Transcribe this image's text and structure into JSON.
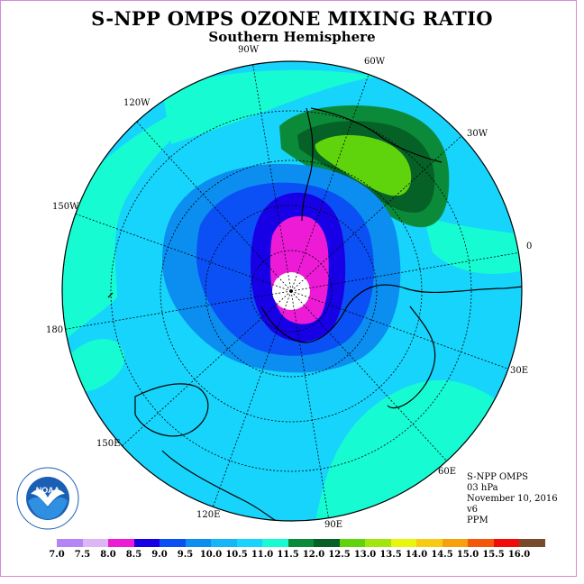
{
  "header": {
    "title": "S-NPP OMPS OZONE MIXING RATIO",
    "subtitle": "Southern Hemisphere"
  },
  "map": {
    "projection": "south-polar-stereographic",
    "longitude_labels": [
      "90W",
      "60W",
      "30W",
      "0",
      "30E",
      "60E",
      "90E",
      "120E",
      "150E",
      "180",
      "150W",
      "120W"
    ]
  },
  "info": {
    "instrument": "S-NPP OMPS",
    "level": "03 hPa",
    "date": "November 10, 2016",
    "version": "v6",
    "units": "PPM"
  },
  "colorbar": {
    "ticks": [
      "7.0",
      "7.5",
      "8.0",
      "8.5",
      "9.0",
      "9.5",
      "10.0",
      "10.5",
      "11.0",
      "11.5",
      "12.0",
      "12.5",
      "13.0",
      "13.5",
      "14.0",
      "14.5",
      "15.0",
      "15.5",
      "16.0"
    ],
    "colors": [
      "#b585f5",
      "#dcb6f5",
      "#ee1bd6",
      "#1800e6",
      "#0b50f5",
      "#0b8ef0",
      "#15b6f7",
      "#16d4fb",
      "#17fbd3",
      "#0b8b3a",
      "#066126",
      "#5fd40c",
      "#a2e60d",
      "#e7f60b",
      "#f7ca14",
      "#f5a00c",
      "#f5560a",
      "#f50a0a",
      "#7a4a2d"
    ]
  },
  "logo": {
    "text": "NOAA",
    "icon": "noaa-logo"
  }
}
